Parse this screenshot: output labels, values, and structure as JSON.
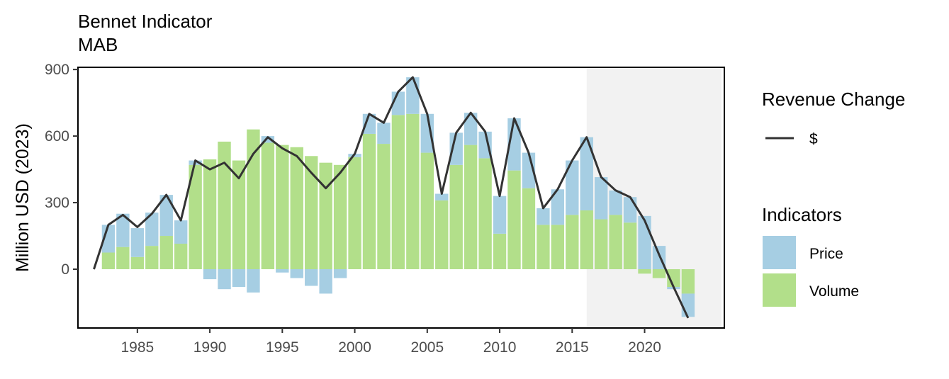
{
  "chart_data": {
    "type": "bar",
    "title": "Bennet Indicator",
    "subtitle": "MAB",
    "ylabel": "Million USD (2023)",
    "xlabel": "",
    "xlim": [
      1980.9,
      2025.5
    ],
    "ylim": [
      -265,
      910
    ],
    "x_ticks": [
      1985,
      1990,
      1995,
      2000,
      2005,
      2010,
      2015,
      2020
    ],
    "y_ticks": [
      0,
      300,
      600,
      900
    ],
    "shaded_region": [
      2016,
      2025.3
    ],
    "stacked": true,
    "series": [
      {
        "name": "Price",
        "color": "#a6cee3",
        "x": [
          1983,
          1984,
          1985,
          1986,
          1987,
          1988,
          1989,
          1990,
          1991,
          1992,
          1993,
          1994,
          1995,
          1996,
          1997,
          1998,
          1999,
          2000,
          2001,
          2002,
          2003,
          2004,
          2005,
          2006,
          2007,
          2008,
          2009,
          2010,
          2011,
          2012,
          2013,
          2014,
          2015,
          2016,
          2017,
          2018,
          2019,
          2020,
          2021,
          2022,
          2023
        ],
        "values": [
          125,
          150,
          130,
          150,
          185,
          105,
          20,
          -45,
          -90,
          -80,
          -105,
          30,
          -15,
          -40,
          -75,
          -110,
          -40,
          15,
          90,
          95,
          105,
          165,
          175,
          30,
          145,
          145,
          120,
          170,
          235,
          160,
          75,
          160,
          245,
          330,
          190,
          110,
          115,
          240,
          105,
          -10,
          -105
        ]
      },
      {
        "name": "Volume",
        "color": "#b2df8a",
        "x": [
          1983,
          1984,
          1985,
          1986,
          1987,
          1988,
          1989,
          1990,
          1991,
          1992,
          1993,
          1994,
          1995,
          1996,
          1997,
          1998,
          1999,
          2000,
          2001,
          2002,
          2003,
          2004,
          2005,
          2006,
          2007,
          2008,
          2009,
          2010,
          2011,
          2012,
          2013,
          2014,
          2015,
          2016,
          2017,
          2018,
          2019,
          2020,
          2021,
          2022,
          2023
        ],
        "values": [
          75,
          100,
          55,
          105,
          150,
          115,
          470,
          495,
          575,
          490,
          630,
          570,
          560,
          550,
          510,
          480,
          470,
          505,
          610,
          565,
          695,
          700,
          525,
          310,
          470,
          560,
          500,
          160,
          445,
          365,
          200,
          200,
          245,
          265,
          225,
          245,
          210,
          -20,
          -40,
          -80,
          -110
        ]
      }
    ],
    "line": {
      "name": "$",
      "color": "#333333",
      "x": [
        1982,
        1983,
        1984,
        1985,
        1986,
        1987,
        1988,
        1989,
        1990,
        1991,
        1992,
        1993,
        1994,
        1995,
        1996,
        1997,
        1998,
        1999,
        2000,
        2001,
        2002,
        2003,
        2004,
        2005,
        2006,
        2007,
        2008,
        2009,
        2010,
        2011,
        2012,
        2013,
        2014,
        2015,
        2016,
        2017,
        2018,
        2019,
        2020,
        2021,
        2022,
        2023
      ],
      "values": [
        0,
        200,
        245,
        190,
        250,
        335,
        220,
        490,
        450,
        480,
        410,
        520,
        595,
        545,
        510,
        435,
        365,
        435,
        520,
        700,
        660,
        800,
        865,
        700,
        340,
        615,
        705,
        620,
        330,
        680,
        525,
        275,
        360,
        490,
        595,
        415,
        355,
        325,
        220,
        65,
        -80,
        -220
      ]
    },
    "legends": [
      {
        "title": "Revenue Change",
        "entries": [
          {
            "label": "$",
            "kind": "line",
            "color": "#333333"
          }
        ]
      },
      {
        "title": "Indicators",
        "entries": [
          {
            "label": "Price",
            "kind": "box",
            "color": "#a6cee3"
          },
          {
            "label": "Volume",
            "kind": "box",
            "color": "#b2df8a"
          }
        ]
      }
    ]
  }
}
